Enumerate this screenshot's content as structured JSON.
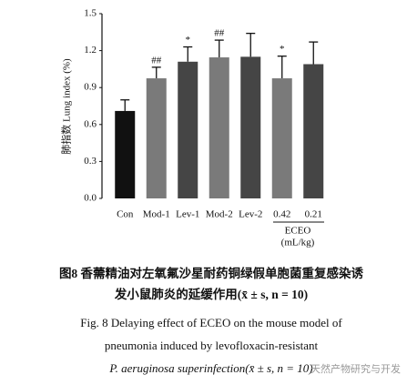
{
  "chart_data": {
    "type": "bar",
    "y_label": "肺指数 Lung index (%)",
    "categories": [
      "Con",
      "Mod-1",
      "Lev-1",
      "Mod-2",
      "Lev-2",
      "0.42",
      "0.21"
    ],
    "values": [
      0.71,
      0.975,
      1.11,
      1.145,
      1.15,
      0.975,
      1.09
    ],
    "errors": [
      0.09,
      0.09,
      0.12,
      0.14,
      0.19,
      0.18,
      0.18
    ],
    "colors": [
      "#111111",
      "#7a7a7a",
      "#454545",
      "#7a7a7a",
      "#454545",
      "#7a7a7a",
      "#454545"
    ],
    "markers": [
      null,
      "##",
      "*",
      "##",
      null,
      "*",
      null
    ],
    "group_label": "ECEO",
    "group_unit": "(mL/kg)",
    "ylim": [
      0,
      1.5
    ],
    "yticks": [
      {
        "value": 0,
        "label": "0.0"
      },
      0.3,
      0.6,
      0.9,
      1.2,
      1.5
    ]
  },
  "caption": {
    "cn_line1": "图8  香薷精油对左氧氟沙星耐药铜绿假单胞菌重复感染诱",
    "cn_line2": "发小鼠肺炎的延缓作用(x̄ ± s, n = 10)",
    "en_line1": "Fig. 8   Delaying effect of ECEO on the mouse model of",
    "en_line2": "pneumonia induced by levofloxacin-resistant",
    "en_line3": "P. aeruginosa superinfection(x̄ ± s, n = 10)"
  },
  "watermark": "天然产物研究与开发"
}
